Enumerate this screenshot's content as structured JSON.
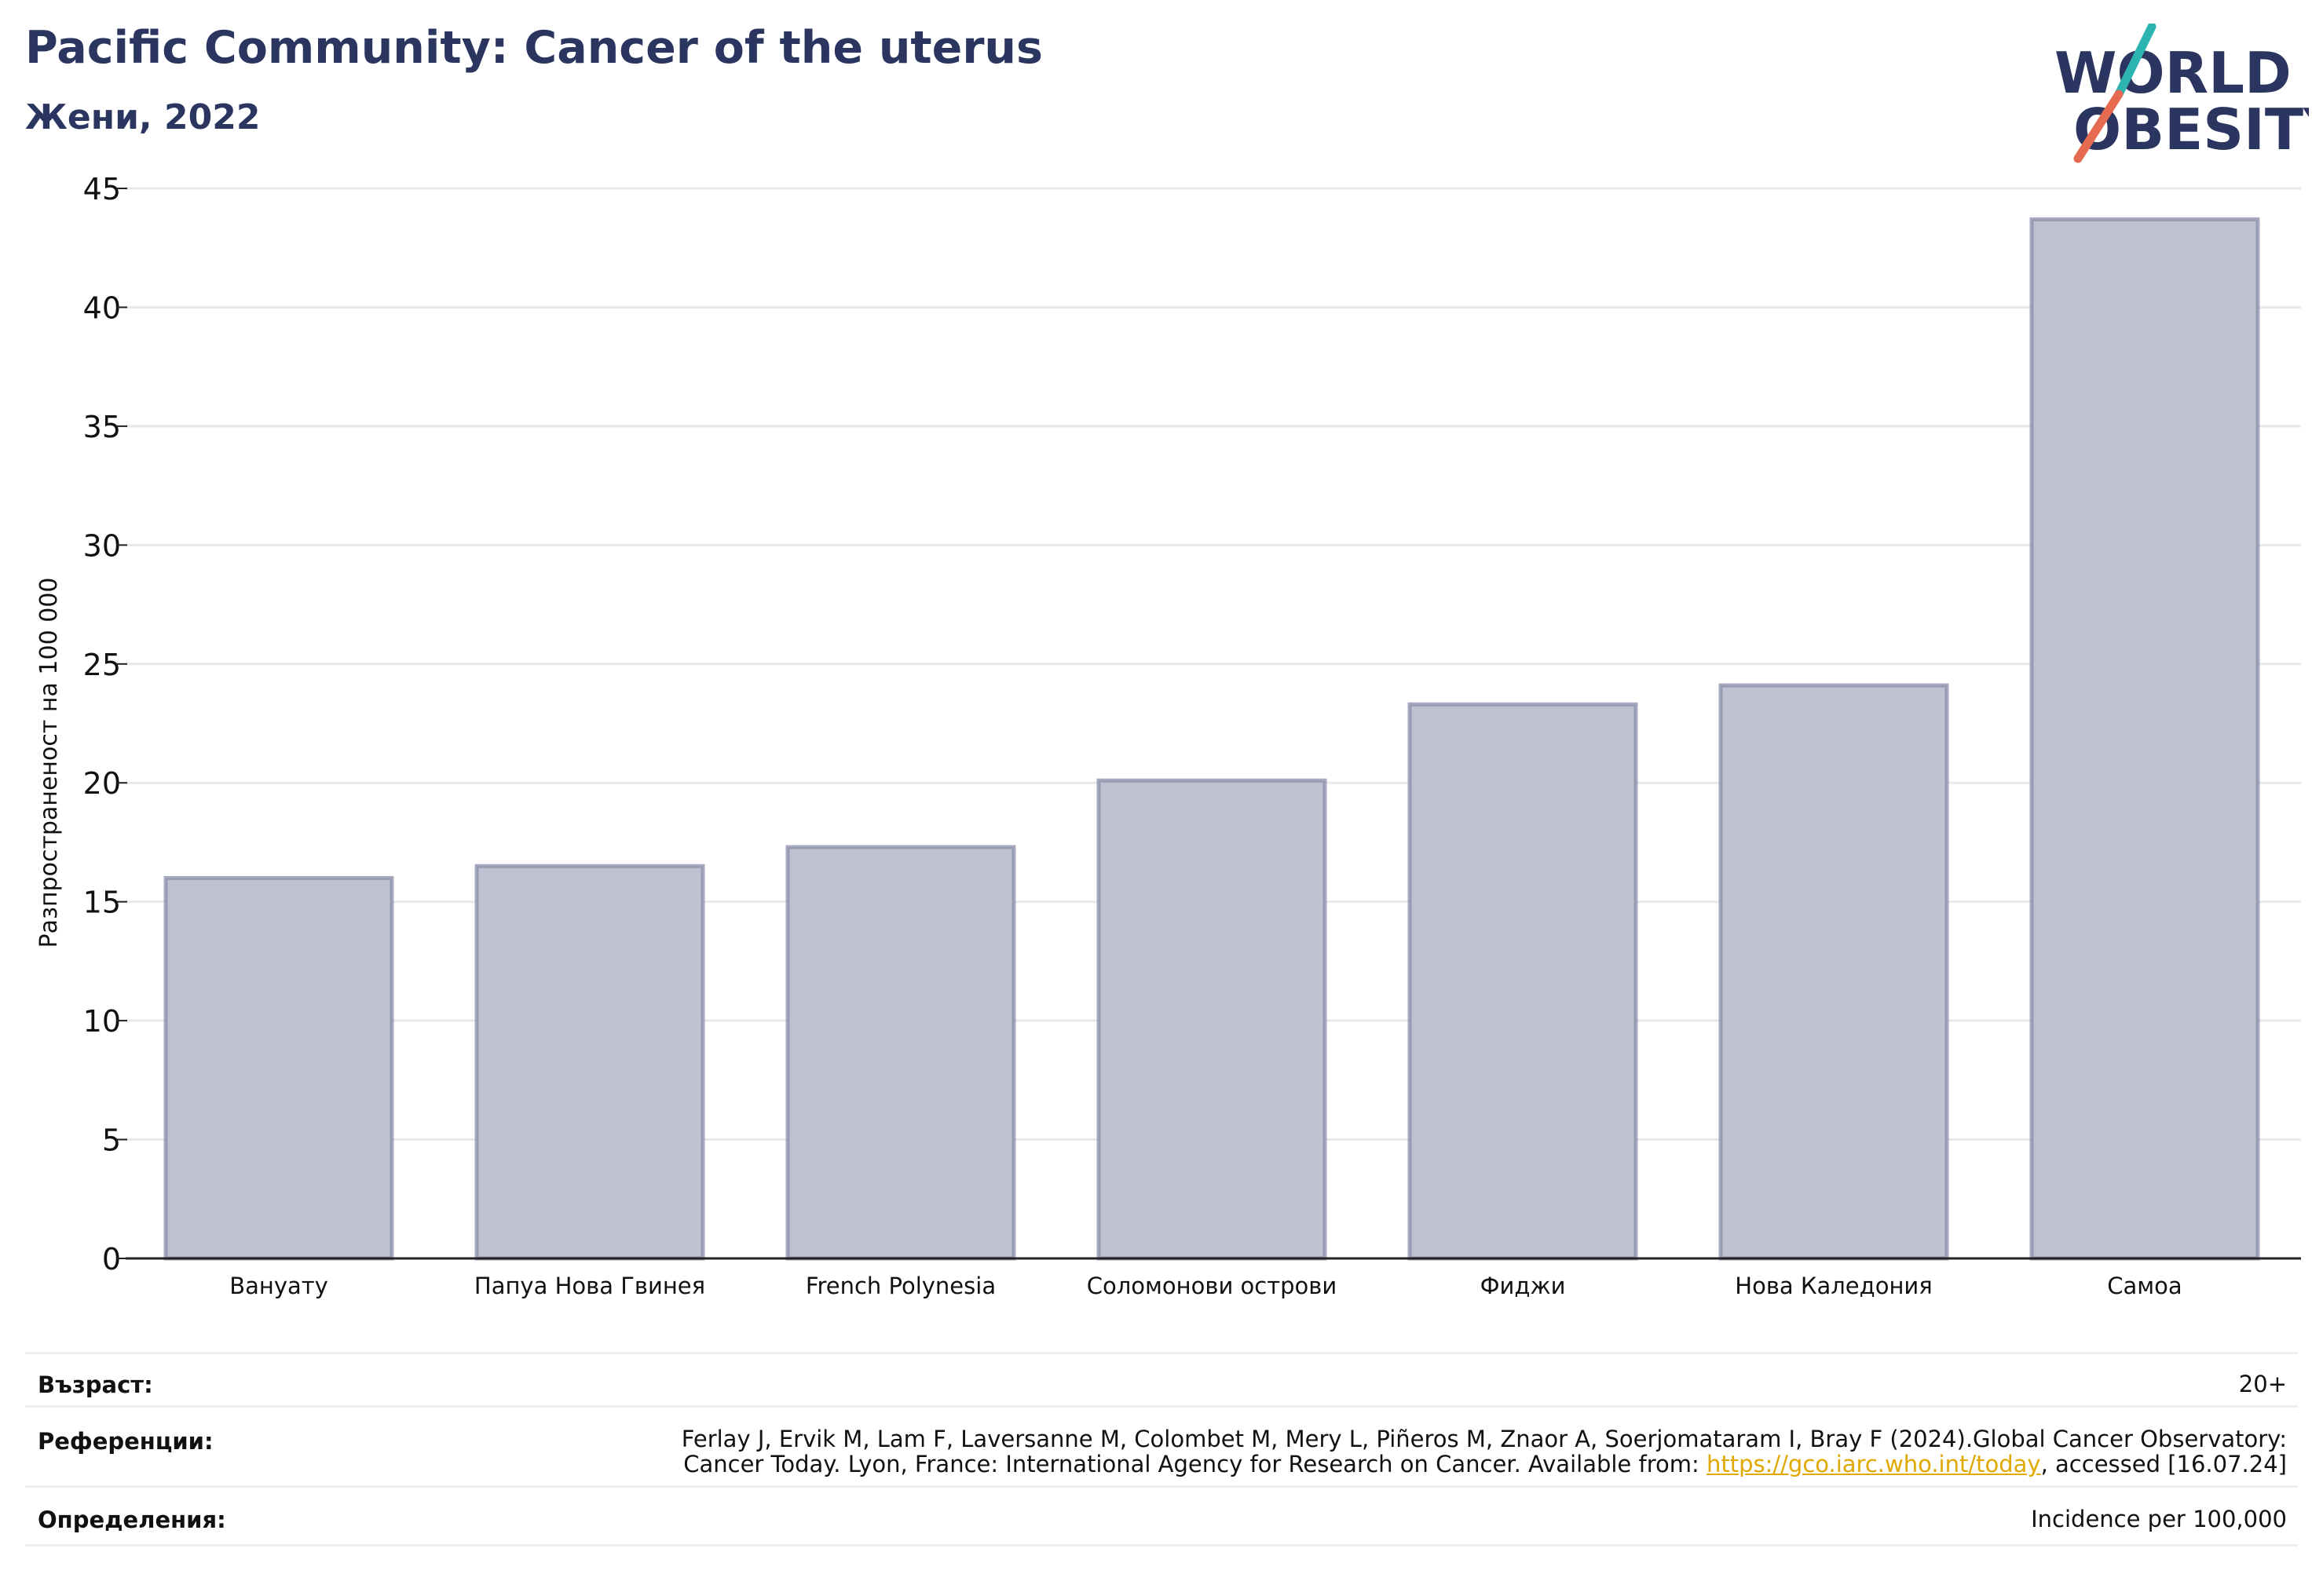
{
  "header": {
    "title": "Pacific Community: Cancer of the uterus",
    "subtitle": "Жени, 2022"
  },
  "logo": {
    "line1": "WORLD",
    "line2": "OBESITY",
    "colors": {
      "text": "#2a3560",
      "slash_top": "#2cb5b0",
      "slash_bottom": "#e56a50"
    }
  },
  "chart_data": {
    "type": "bar",
    "ylabel": "Разпространеност  на 100 000",
    "xlabel": "",
    "ylim": [
      0,
      45
    ],
    "yticks": [
      0,
      5,
      10,
      15,
      20,
      25,
      30,
      35,
      40,
      45
    ],
    "grid": true,
    "categories": [
      "Вануату",
      "Папуа Нова Гвинея",
      "French Polynesia",
      "Соломонови острови",
      "Фиджи",
      "Нова Каледония",
      "Самоа"
    ],
    "values": [
      16.0,
      16.5,
      17.3,
      20.1,
      23.3,
      24.1,
      43.7
    ],
    "colors": {
      "bar_fill": "#bec1cf",
      "bar_stroke": "#8a8ea8",
      "grid": "#e8e8ee",
      "axis": "#222222"
    }
  },
  "footer": {
    "age_label": "Възраст:",
    "age_value": "20+",
    "refs_label": "Референции:",
    "refs_line1": "Ferlay J, Ervik M, Lam F, Laversanne M, Colombet M, Mery L, Piñeros M, Znaor A, Soerjomataram I, Bray F (2024).Global Cancer Observatory:",
    "refs_line2_pre": "Cancer Today. Lyon, France: International Agency for Research on Cancer. Available from: ",
    "refs_link": "https://gco.iarc.who.int/today",
    "refs_line2_post": ", accessed [16.07.24]",
    "defs_label": "Определения:",
    "defs_value": "Incidence per 100,000"
  }
}
